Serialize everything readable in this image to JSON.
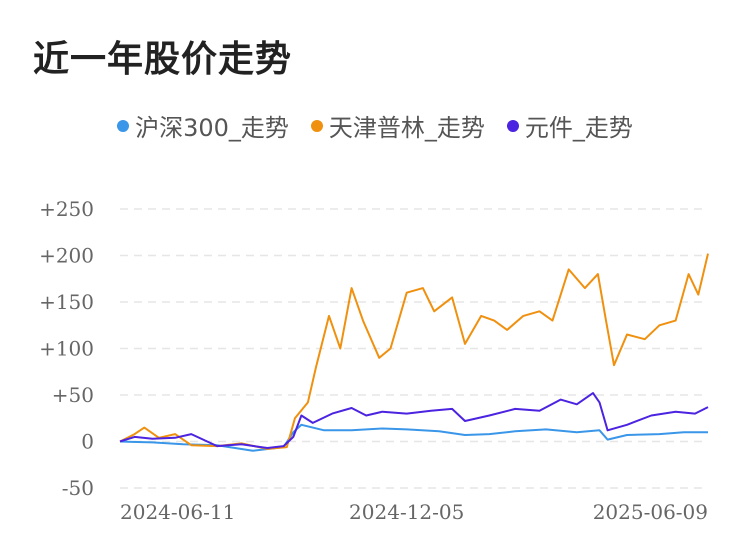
{
  "title": "近一年股价走势",
  "chart_data": {
    "type": "line",
    "y_ticks": [
      "+250",
      "+200",
      "+150",
      "+100",
      "+50",
      "0",
      "-50"
    ],
    "y_tick_values": [
      250,
      200,
      150,
      100,
      50,
      0,
      -50
    ],
    "ylim": [
      -50,
      250
    ],
    "x_ticks": [
      "2024-06-11",
      "2024-12-05",
      "2025-06-09"
    ],
    "grid": true,
    "legend_position": "top",
    "series": [
      {
        "name": "沪深300_走势",
        "color": "#3a96e8",
        "x": [
          "2024-06-11",
          "2024-07-01",
          "2024-07-20",
          "2024-08-10",
          "2024-09-01",
          "2024-09-20",
          "2024-09-26",
          "2024-10-01",
          "2024-10-15",
          "2024-11-01",
          "2024-11-20",
          "2024-12-05",
          "2024-12-25",
          "2025-01-10",
          "2025-01-25",
          "2025-02-10",
          "2025-03-01",
          "2025-03-20",
          "2025-04-03",
          "2025-04-08",
          "2025-04-20",
          "2025-05-10",
          "2025-05-25",
          "2025-06-09"
        ],
        "values": [
          0,
          -1,
          -3,
          -4,
          -10,
          -6,
          10,
          18,
          12,
          12,
          14,
          13,
          11,
          7,
          8,
          11,
          13,
          10,
          12,
          2,
          7,
          8,
          10,
          10
        ]
      },
      {
        "name": "天津普林_走势",
        "color": "#f0900f",
        "x": [
          "2024-06-11",
          "2024-06-20",
          "2024-06-26",
          "2024-07-05",
          "2024-07-15",
          "2024-07-25",
          "2024-08-10",
          "2024-08-25",
          "2024-09-10",
          "2024-09-22",
          "2024-09-27",
          "2024-10-05",
          "2024-10-10",
          "2024-10-18",
          "2024-10-25",
          "2024-11-01",
          "2024-11-08",
          "2024-11-18",
          "2024-11-25",
          "2024-12-05",
          "2024-12-15",
          "2024-12-22",
          "2025-01-02",
          "2025-01-10",
          "2025-01-20",
          "2025-01-28",
          "2025-02-05",
          "2025-02-15",
          "2025-02-25",
          "2025-03-05",
          "2025-03-15",
          "2025-03-25",
          "2025-04-02",
          "2025-04-07",
          "2025-04-12",
          "2025-04-20",
          "2025-05-01",
          "2025-05-10",
          "2025-05-20",
          "2025-05-28",
          "2025-06-03",
          "2025-06-09"
        ],
        "values": [
          0,
          8,
          15,
          4,
          8,
          -4,
          -5,
          -2,
          -8,
          -6,
          25,
          42,
          80,
          135,
          100,
          165,
          130,
          90,
          100,
          160,
          165,
          140,
          155,
          105,
          135,
          130,
          120,
          135,
          140,
          130,
          185,
          165,
          180,
          130,
          82,
          115,
          110,
          125,
          130,
          180,
          158,
          202
        ]
      },
      {
        "name": "元件_走势",
        "color": "#4b23e0",
        "x": [
          "2024-06-11",
          "2024-06-20",
          "2024-07-01",
          "2024-07-15",
          "2024-07-25",
          "2024-08-10",
          "2024-08-25",
          "2024-09-10",
          "2024-09-20",
          "2024-09-26",
          "2024-10-01",
          "2024-10-08",
          "2024-10-20",
          "2024-11-01",
          "2024-11-10",
          "2024-11-20",
          "2024-12-05",
          "2024-12-20",
          "2025-01-02",
          "2025-01-10",
          "2025-01-25",
          "2025-02-10",
          "2025-02-25",
          "2025-03-10",
          "2025-03-20",
          "2025-03-30",
          "2025-04-03",
          "2025-04-08",
          "2025-04-20",
          "2025-05-05",
          "2025-05-20",
          "2025-06-01",
          "2025-06-09"
        ],
        "values": [
          0,
          5,
          3,
          4,
          8,
          -5,
          -3,
          -7,
          -5,
          5,
          28,
          20,
          30,
          36,
          28,
          32,
          30,
          33,
          35,
          22,
          28,
          35,
          33,
          45,
          40,
          52,
          42,
          12,
          18,
          28,
          32,
          30,
          37
        ]
      }
    ]
  }
}
